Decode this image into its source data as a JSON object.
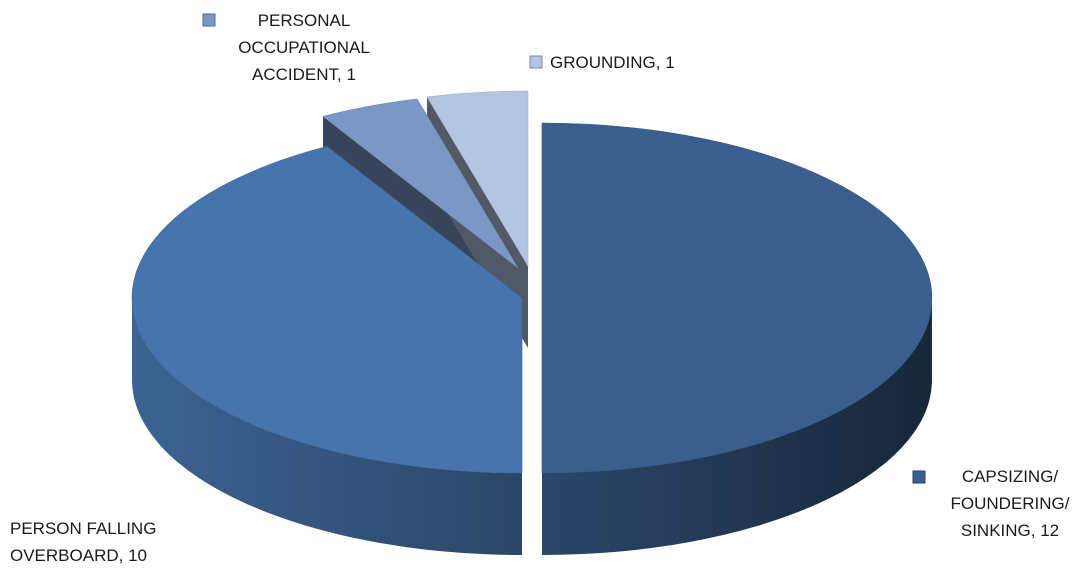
{
  "chart_data": {
    "type": "pie",
    "style": "3d-exploded",
    "title": "",
    "slices": [
      {
        "category": "CAPSIZING/ FOUNDERING/ SINKING",
        "value": 12,
        "color": "#3A5F8F",
        "label_lines": [
          "CAPSIZING/",
          "FOUNDERING/",
          "SINKING, 12"
        ]
      },
      {
        "category": "PERSON FALLING OVERBOARD",
        "value": 10,
        "color": "#4774AD",
        "label_lines": [
          "PERSON FALLING",
          "OVERBOARD, 10"
        ]
      },
      {
        "category": "PERSONAL OCCUPATIONAL ACCIDENT",
        "value": 1,
        "color": "#7A97C6",
        "label_lines": [
          "PERSONAL",
          "OCCUPATIONAL",
          "ACCIDENT, 1"
        ]
      },
      {
        "category": "GROUNDING",
        "value": 1,
        "color": "#B4C5E2",
        "label_lines": [
          "GROUNDING, 1"
        ]
      }
    ]
  }
}
